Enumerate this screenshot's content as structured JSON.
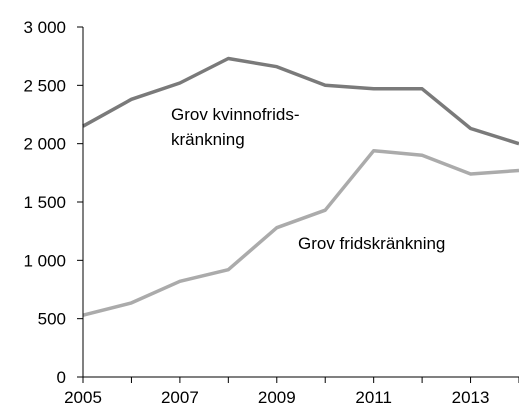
{
  "chart_data": {
    "type": "line",
    "title": "",
    "xlabel": "",
    "ylabel": "",
    "x": [
      2005,
      2006,
      2007,
      2008,
      2009,
      2010,
      2011,
      2012,
      2013,
      2014
    ],
    "xlim": [
      2005,
      2014
    ],
    "ylim": [
      0,
      3000
    ],
    "x_ticks": [
      "2005",
      "2007",
      "2009",
      "2011",
      "2013"
    ],
    "y_ticks": [
      "0",
      "500",
      "1 000",
      "1 500",
      "2 000",
      "2 500",
      "3 000"
    ],
    "grid": false,
    "legend": "none",
    "series": [
      {
        "name_lines": [
          "Grov kvinnofrids-",
          "kränkning"
        ],
        "color": "#7a7a7a",
        "values": [
          2150,
          2380,
          2520,
          2730,
          2660,
          2500,
          2470,
          2470,
          2130,
          2000
        ]
      },
      {
        "name_lines": [
          "Grov fridskränkning"
        ],
        "color": "#ababab",
        "values": [
          530,
          635,
          820,
          920,
          1280,
          1430,
          1940,
          1900,
          1740,
          1770
        ]
      }
    ]
  }
}
